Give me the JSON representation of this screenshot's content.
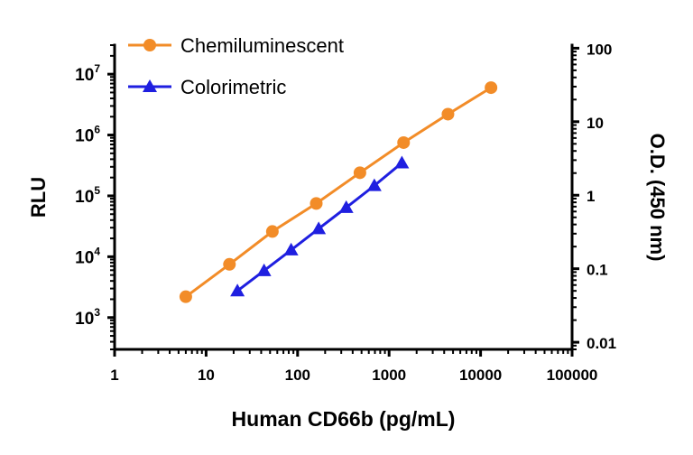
{
  "chart_data": {
    "type": "line",
    "xlabel": "Human CD66b (pg/mL)",
    "ylabel": "RLU",
    "y2label": "O.D. (450 nm)",
    "x_scale": "log",
    "y_scale": "log",
    "y2_scale": "log",
    "xlim": [
      1,
      100000
    ],
    "ylim": [
      300,
      30000000
    ],
    "y2lim": [
      0.008,
      110
    ],
    "x_ticks": [
      "1",
      "10",
      "100",
      "1000",
      "10000",
      "100000"
    ],
    "y_ticks": [
      {
        "base": "10",
        "exp": "3"
      },
      {
        "base": "10",
        "exp": "4"
      },
      {
        "base": "10",
        "exp": "5"
      },
      {
        "base": "10",
        "exp": "6"
      },
      {
        "base": "10",
        "exp": "7"
      }
    ],
    "y2_ticks": [
      "0.01",
      "0.1",
      "1",
      "10",
      "100"
    ],
    "grid": false,
    "legend_position": "top-left",
    "series": [
      {
        "name": "Chemiluminescent",
        "axis": "left",
        "color": "#F28C28",
        "marker": "circle",
        "x": [
          6,
          18,
          53,
          160,
          480,
          1440,
          4400,
          13000
        ],
        "y": [
          2200,
          7500,
          26000,
          75000,
          240000,
          750000,
          2200000,
          6000000
        ]
      },
      {
        "name": "Colorimetric",
        "axis": "right",
        "color": "#1F1FE0",
        "marker": "triangle",
        "x": [
          22,
          43,
          85,
          170,
          340,
          690,
          1380
        ],
        "y": [
          0.05,
          0.094,
          0.18,
          0.35,
          0.68,
          1.35,
          2.75
        ]
      }
    ]
  }
}
